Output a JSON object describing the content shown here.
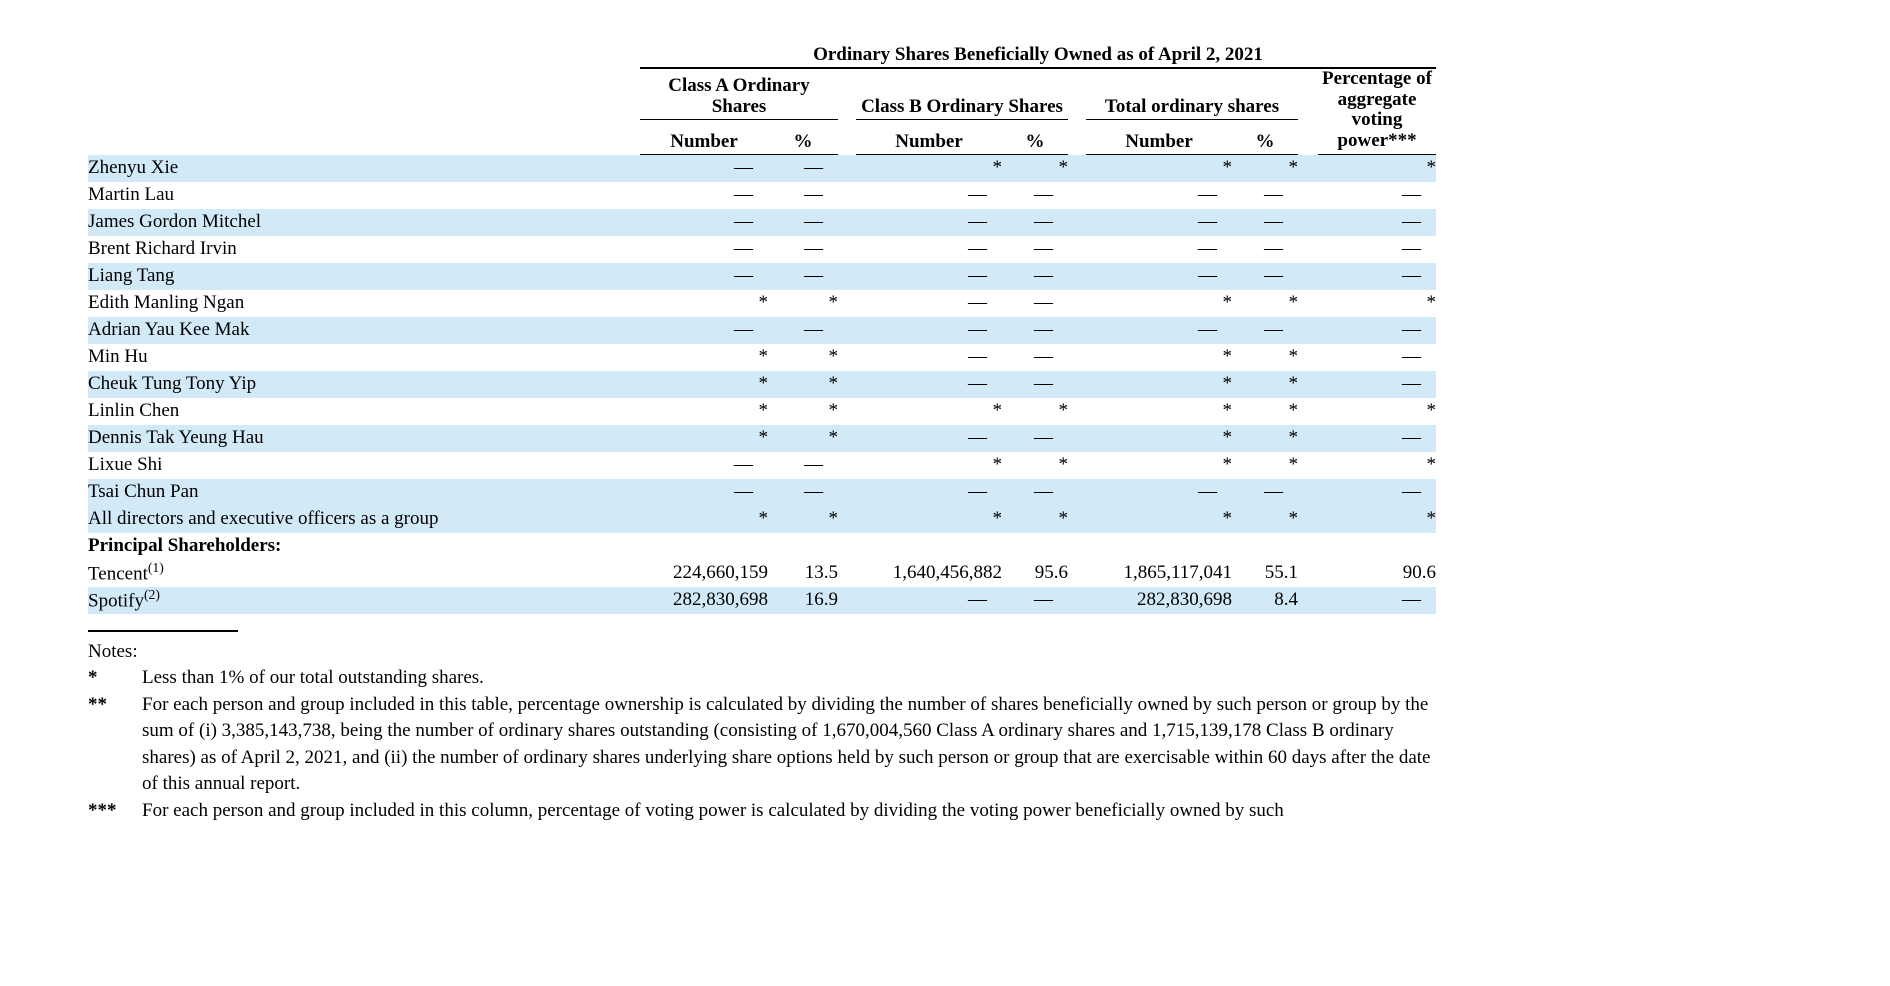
{
  "colors": {
    "row_stripe": "#d2e9f8",
    "text": "#000000",
    "background": "#ffffff"
  },
  "table": {
    "title": "Ordinary Shares Beneficially Owned as of April 2, 2021",
    "col_groups": [
      "Class A Ordinary Shares",
      "Class B Ordinary Shares",
      "Total ordinary shares",
      "Percentage of aggregate voting power***"
    ],
    "sub_headers": [
      "Number",
      "%",
      "Number",
      "%",
      "Number",
      "%"
    ],
    "rows": [
      {
        "name": "Zhenyu Xie",
        "shaded": true,
        "cells": [
          "—",
          "—",
          "*",
          "*",
          "*",
          "*",
          "*"
        ]
      },
      {
        "name": "Martin Lau",
        "shaded": false,
        "cells": [
          "—",
          "—",
          "—",
          "—",
          "—",
          "—",
          "—"
        ]
      },
      {
        "name": "James Gordon Mitchel",
        "shaded": true,
        "cells": [
          "—",
          "—",
          "—",
          "—",
          "—",
          "—",
          "—"
        ]
      },
      {
        "name": "Brent Richard Irvin",
        "shaded": false,
        "cells": [
          "—",
          "—",
          "—",
          "—",
          "—",
          "—",
          "—"
        ]
      },
      {
        "name": "Liang Tang",
        "shaded": true,
        "cells": [
          "—",
          "—",
          "—",
          "—",
          "—",
          "—",
          "—"
        ]
      },
      {
        "name": "Edith Manling Ngan",
        "shaded": false,
        "cells": [
          "*",
          "*",
          "—",
          "—",
          "*",
          "*",
          "*"
        ]
      },
      {
        "name": "Adrian Yau Kee Mak",
        "shaded": true,
        "cells": [
          "—",
          "—",
          "—",
          "—",
          "—",
          "—",
          "—"
        ]
      },
      {
        "name": "Min Hu",
        "shaded": false,
        "cells": [
          "*",
          "*",
          "—",
          "—",
          "*",
          "*",
          "—"
        ]
      },
      {
        "name": "Cheuk Tung Tony Yip",
        "shaded": true,
        "cells": [
          "*",
          "*",
          "—",
          "—",
          "*",
          "*",
          "—"
        ]
      },
      {
        "name": "Linlin Chen",
        "shaded": false,
        "cells": [
          "*",
          "*",
          "*",
          "*",
          "*",
          "*",
          "*"
        ]
      },
      {
        "name": "Dennis Tak Yeung Hau",
        "shaded": true,
        "cells": [
          "*",
          "*",
          "—",
          "—",
          "*",
          "*",
          "—"
        ]
      },
      {
        "name": "Lixue Shi",
        "shaded": false,
        "cells": [
          "—",
          "—",
          "*",
          "*",
          "*",
          "*",
          "*"
        ]
      },
      {
        "name": "Tsai Chun Pan",
        "shaded": true,
        "cells": [
          "—",
          "—",
          "—",
          "—",
          "—",
          "—",
          "—"
        ]
      },
      {
        "name": "All directors and executive officers as a group",
        "shaded": true,
        "cells": [
          "*",
          "*",
          "*",
          "*",
          "*",
          "*",
          "*"
        ]
      },
      {
        "name": "Principal Shareholders:",
        "shaded": false,
        "section": true,
        "cells": []
      },
      {
        "name": "Tencent",
        "sup": "(1)",
        "shaded": false,
        "cells": [
          "224,660,159",
          "13.5",
          "1,640,456,882",
          "95.6",
          "1,865,117,041",
          "55.1",
          "90.6"
        ]
      },
      {
        "name": "Spotify",
        "sup": "(2)",
        "shaded": true,
        "cells": [
          "282,830,698",
          "16.9",
          "—",
          "—",
          "282,830,698",
          "8.4",
          "—"
        ]
      }
    ]
  },
  "notes": {
    "title": "Notes:",
    "items": [
      {
        "marker": "*",
        "text": "Less than 1% of our total outstanding shares."
      },
      {
        "marker": "**",
        "text": "For each person and group included in this table, percentage ownership is calculated by dividing the number of shares beneficially owned by such person or group by the sum of (i) 3,385,143,738, being the number of ordinary shares outstanding (consisting of 1,670,004,560 Class A ordinary shares and 1,715,139,178 Class B ordinary shares) as of April 2, 2021, and (ii) the number of ordinary shares underlying share options held by such person or group that are exercisable within 60 days after the date of this annual report."
      },
      {
        "marker": "***",
        "text": "For each person and group included in this column, percentage of voting power is calculated by dividing the voting power beneficially owned by such"
      }
    ]
  }
}
